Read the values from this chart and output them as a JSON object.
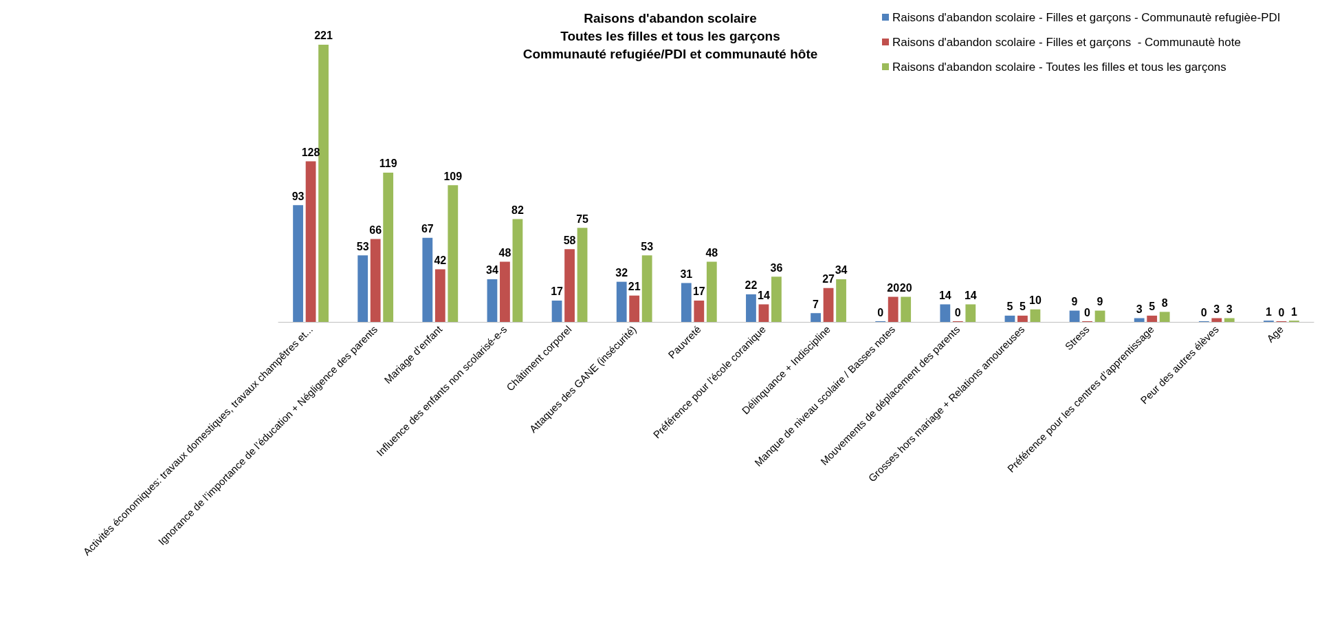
{
  "chart_data": {
    "type": "bar",
    "title": "Raisons d'abandon scolaire\nToutes les filles et tous les garçons\nCommunauté refugiée/PDI et communauté hôte",
    "categories": [
      "Activités économiques: travaux domestiques, travaux champêtres et...",
      "Ignorance de l’importance de l’éducation + Négligence des parents",
      "Mariage d’enfant",
      "Influence des enfants non scolarisé-e-s",
      "Châtiment corporel",
      "Attaques des GANE (insécurité)",
      "Pauvreté",
      "Préférence pour l’école coranique",
      "Délinquance + Indiscipline",
      "Manque de niveau scolaire / Basses notes",
      "Mouvements de déplacement des parents",
      "Grosses hors mariage + Relations amoureuses",
      "Stress",
      "Préférence pour les centres d’apprentissage",
      "Peur des autres élèves",
      "Age"
    ],
    "series": [
      {
        "name": "Raisons d'abandon scolaire - Filles et garçons - Communautè refugièe-PDI",
        "color": "#4f81bd",
        "values": [
          93,
          53,
          67,
          34,
          17,
          32,
          31,
          22,
          7,
          0,
          14,
          5,
          9,
          3,
          0,
          1
        ]
      },
      {
        "name": "Raisons d'abandon scolaire - Filles et garçons  - Communautè hote",
        "color": "#c0504d",
        "values": [
          128,
          66,
          42,
          48,
          58,
          21,
          17,
          14,
          27,
          20,
          0,
          5,
          0,
          5,
          3,
          0
        ]
      },
      {
        "name": "Raisons d'abandon scolaire - Toutes les filles et tous les garçons",
        "color": "#9bbb59",
        "values": [
          221,
          119,
          109,
          82,
          75,
          53,
          48,
          36,
          34,
          20,
          14,
          10,
          9,
          8,
          3,
          1
        ]
      }
    ],
    "data_labels": true,
    "legend": "top right",
    "tick_labels": "x"
  }
}
